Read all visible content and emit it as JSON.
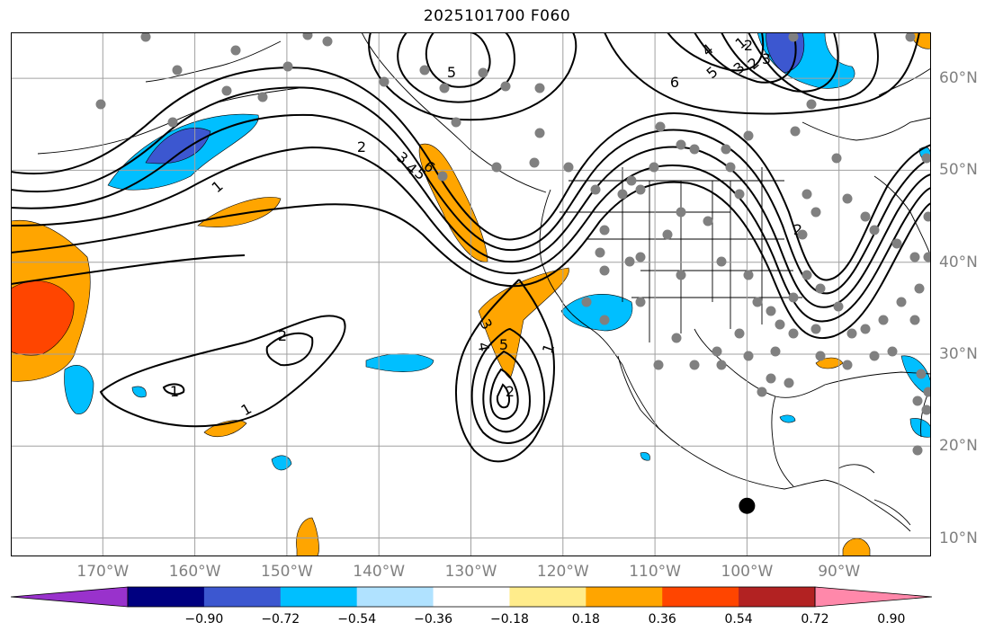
{
  "title": "2025101700 F060",
  "map": {
    "lon_range": [
      -180,
      -80
    ],
    "lat_range": [
      8,
      65
    ],
    "grid_lons": [
      -170,
      -160,
      -150,
      -140,
      -130,
      -120,
      -110,
      -100,
      -90
    ],
    "grid_lats": [
      10,
      20,
      30,
      40,
      50,
      60
    ],
    "lon_labels": [
      "170°W",
      "160°W",
      "150°W",
      "140°W",
      "130°W",
      "120°W",
      "110°W",
      "100°W",
      "90°W"
    ],
    "lat_labels": [
      "10°N",
      "20°N",
      "30°N",
      "40°N",
      "50°N",
      "60°N"
    ],
    "contour_labels": [
      "1",
      "2",
      "3",
      "4",
      "5",
      "6",
      "1",
      "2",
      "3",
      "4",
      "5",
      "6",
      "2",
      "1",
      "2",
      "1",
      "3",
      "4",
      "5",
      "2",
      "1",
      "2",
      "3",
      "5"
    ],
    "highlight_point": {
      "lon": -100,
      "lat": 13.5,
      "color": "#000000"
    },
    "station_marker_color": "#808080"
  },
  "colorbar": {
    "colors": [
      "#9932cc",
      "#000080",
      "#3c57d0",
      "#00bfff",
      "#b0e2ff",
      "#ffffff",
      "#ffec8b",
      "#ffa500",
      "#ff4500",
      "#b22222",
      "#ff88aa"
    ],
    "tick_labels": [
      "−0.90",
      "−0.72",
      "−0.54",
      "−0.36",
      "−0.18",
      "0.18",
      "0.36",
      "0.54",
      "0.72",
      "0.90"
    ]
  }
}
